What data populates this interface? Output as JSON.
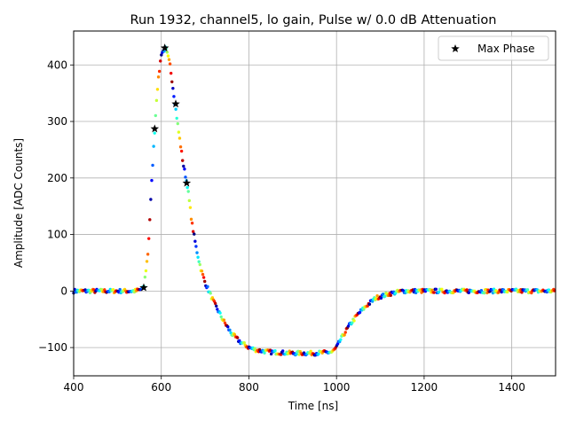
{
  "chart_data": {
    "type": "scatter",
    "title": "Run 1932, channel5, lo gain, Pulse w/ 0.0 dB Attenuation",
    "xlabel": "Time [ns]",
    "ylabel": "Amplitude [ADC Counts]",
    "xlim": [
      400,
      1500
    ],
    "ylim": [
      -150,
      460
    ],
    "xticks": [
      400,
      600,
      800,
      1000,
      1200,
      1400
    ],
    "yticks": [
      -100,
      0,
      100,
      200,
      300,
      400
    ],
    "xtick_labels": [
      "400",
      "600",
      "800",
      "1000",
      "1200",
      "1400"
    ],
    "ytick_labels": [
      "−100",
      "0",
      "100",
      "200",
      "300",
      "400"
    ],
    "grid": true,
    "legend": {
      "position": "top-right",
      "entries": [
        "Max Phase"
      ]
    },
    "colormap": "jet",
    "pulse_profile": {
      "description_note": "approximate waveform traced by the colored phase samples",
      "time": [
        400,
        540,
        550,
        560,
        570,
        580,
        590,
        600,
        610,
        620,
        630,
        640,
        650,
        660,
        670,
        680,
        690,
        700,
        720,
        740,
        760,
        780,
        800,
        820,
        850,
        900,
        950,
        990,
        1000,
        1010,
        1030,
        1050,
        1070,
        1090,
        1120,
        1150,
        1200,
        1500
      ],
      "amplitude": [
        0,
        0,
        2,
        5,
        70,
        220,
        350,
        420,
        430,
        400,
        340,
        280,
        225,
        185,
        120,
        75,
        40,
        15,
        -20,
        -50,
        -75,
        -90,
        -100,
        -105,
        -108,
        -110,
        -110,
        -108,
        -100,
        -85,
        -60,
        -40,
        -25,
        -12,
        -5,
        0,
        0,
        0
      ]
    },
    "series": [
      {
        "name": "Max Phase",
        "marker": "star",
        "color": "#000000",
        "x": [
          560,
          585,
          608,
          633,
          658
        ],
        "y": [
          6,
          287,
          430,
          331,
          191
        ]
      }
    ]
  }
}
